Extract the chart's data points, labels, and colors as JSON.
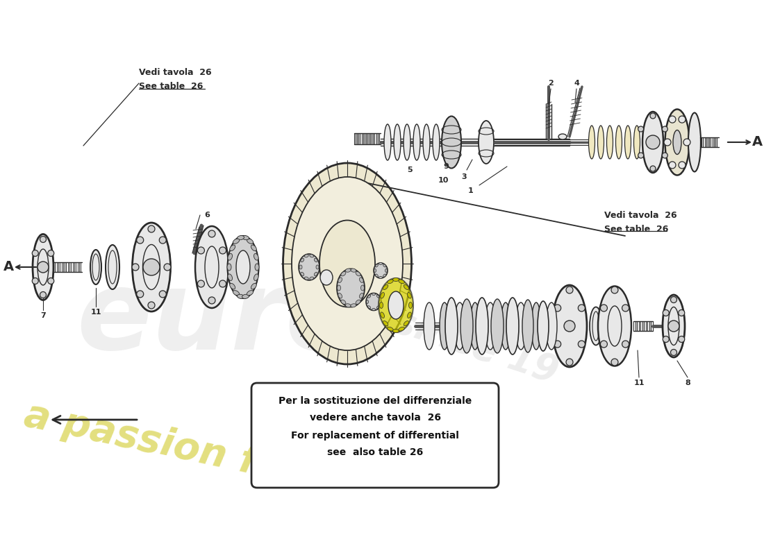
{
  "bg_color": "#ffffff",
  "lc": "#2a2a2a",
  "fc_light": "#e8e8e8",
  "fc_mid": "#d0d0d0",
  "fc_dark": "#b8b8b8",
  "note_box": {
    "text1": "Per la sostituzione del differenziale",
    "text2": "vedere anche tavola  26",
    "text3": "For replacement of differential",
    "text4": "see  also table 26"
  },
  "vedi_left1": "Vedi tavola  26",
  "vedi_left2": "See table  26",
  "vedi_right1": "Vedi tavola  26",
  "vedi_right2": "See table  26"
}
